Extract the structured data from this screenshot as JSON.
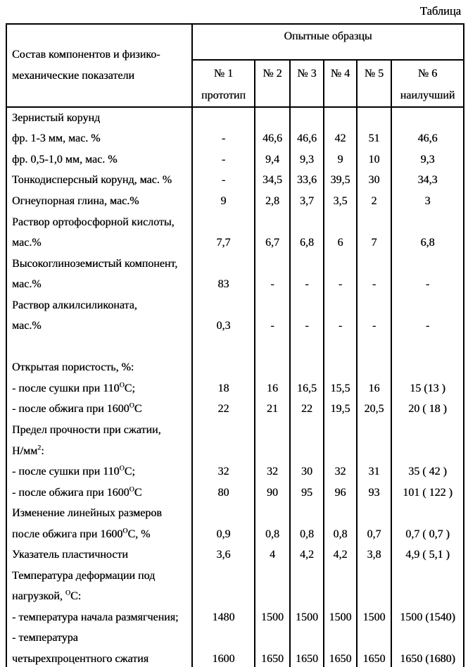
{
  "page_title": "Таблица",
  "table": {
    "header": {
      "rowhead_line1": "Состав компонентов и физико-",
      "rowhead_line2": "механические показатели",
      "group_title": "Опытные образцы",
      "columns": [
        {
          "line1": "№ 1",
          "line2": "прототип"
        },
        {
          "line1": "№ 2",
          "line2": ""
        },
        {
          "line1": "№ 3",
          "line2": ""
        },
        {
          "line1": "№ 4",
          "line2": ""
        },
        {
          "line1": "№ 5",
          "line2": ""
        },
        {
          "line1": "№ 6",
          "line2": "наилучший"
        }
      ]
    },
    "rows": [
      {
        "label": "Зернистый корунд",
        "values": [
          "",
          "",
          "",
          "",
          "",
          ""
        ]
      },
      {
        "label": "фр. 1-3 мм, мас. %",
        "values": [
          "-",
          "46,6",
          "46,6",
          "42",
          "51",
          "46,6"
        ]
      },
      {
        "label": "фр. 0,5-1,0 мм, мас. %",
        "values": [
          "-",
          "9,4",
          "9,3",
          "9",
          "10",
          "9,3"
        ]
      },
      {
        "label": "Тонкодисперсный корунд, мас. %",
        "values": [
          "-",
          "34,5",
          "33,6",
          "39,5",
          "30",
          "34,3"
        ]
      },
      {
        "label": "Огнеупорная глина, мас.%",
        "values": [
          "9",
          "2,8",
          "3,7",
          "3,5",
          "2",
          "3"
        ]
      },
      {
        "label": "Раствор ортофосфорной кислоты,",
        "values": [
          "",
          "",
          "",
          "",
          "",
          ""
        ]
      },
      {
        "label": "мас.%",
        "values": [
          "7,7",
          "6,7",
          "6,8",
          "6",
          "7",
          "6,8"
        ]
      },
      {
        "label": "Высокоглиноземистый компонент,",
        "values": [
          "",
          "",
          "",
          "",
          "",
          ""
        ]
      },
      {
        "label": "мас.%",
        "values": [
          "83",
          "-",
          "-",
          "-",
          "-",
          "-"
        ]
      },
      {
        "label": "Раствор алкилсиликоната,",
        "values": [
          "",
          "",
          "",
          "",
          "",
          ""
        ]
      },
      {
        "label": "мас.%",
        "values": [
          "0,3",
          "-",
          "-",
          "-",
          "-",
          "-"
        ]
      },
      {
        "label": "",
        "values": [
          "",
          "",
          "",
          "",
          "",
          ""
        ]
      },
      {
        "label": "Открытая пористость, %:",
        "values": [
          "",
          "",
          "",
          "",
          "",
          ""
        ]
      },
      {
        "label": "- после сушки при 110^{О}С;",
        "values": [
          "18",
          "16",
          "16,5",
          "15,5",
          "16",
          "15 (13 )"
        ]
      },
      {
        "label": "- после обжига при 1600^{О}С",
        "values": [
          "22",
          "21",
          "22",
          "19,5",
          "20,5",
          "20 ( 18 )"
        ]
      },
      {
        "label": "Предел прочности при сжатии,",
        "values": [
          "",
          "",
          "",
          "",
          "",
          ""
        ]
      },
      {
        "label": "Н/мм^{2}:",
        "values": [
          "",
          "",
          "",
          "",
          "",
          ""
        ]
      },
      {
        "label": "- после сушки при 110^{О}С;",
        "values": [
          "32",
          "32",
          "30",
          "32",
          "31",
          "35 ( 42 )"
        ]
      },
      {
        "label": "- после обжига при 1600^{О}С",
        "values": [
          "80",
          "90",
          "95",
          "96",
          "93",
          "101 ( 122 )"
        ]
      },
      {
        "label": "Изменение линейных размеров",
        "values": [
          "",
          "",
          "",
          "",
          "",
          ""
        ]
      },
      {
        "label": "после обжига при 1600^{О}С, %",
        "values": [
          "0,9",
          "0,8",
          "0,8",
          "0,8",
          "0,7",
          "0,7 ( 0,7 )"
        ]
      },
      {
        "label": "Указатель пластичности",
        "values": [
          "3,6",
          "4",
          "4,2",
          "4,2",
          "3,8",
          "4,9 ( 5,1 )"
        ]
      },
      {
        "label": "Температура деформации под",
        "values": [
          "",
          "",
          "",
          "",
          "",
          ""
        ]
      },
      {
        "label": "нагрузкой, ^{О}С:",
        "values": [
          "",
          "",
          "",
          "",
          "",
          ""
        ]
      },
      {
        "label": "- температура начала размягчения;",
        "values": [
          "1480",
          "1500",
          "1500",
          "1500",
          "1500",
          "1500 (1540)"
        ]
      },
      {
        "label": "- температура",
        "values": [
          "",
          "",
          "",
          "",
          "",
          ""
        ]
      },
      {
        "label": "четырехпроцентного сжатия",
        "values": [
          "1600",
          "1650",
          "1650",
          "1650",
          "1650",
          "1650 (1680)"
        ]
      }
    ]
  }
}
